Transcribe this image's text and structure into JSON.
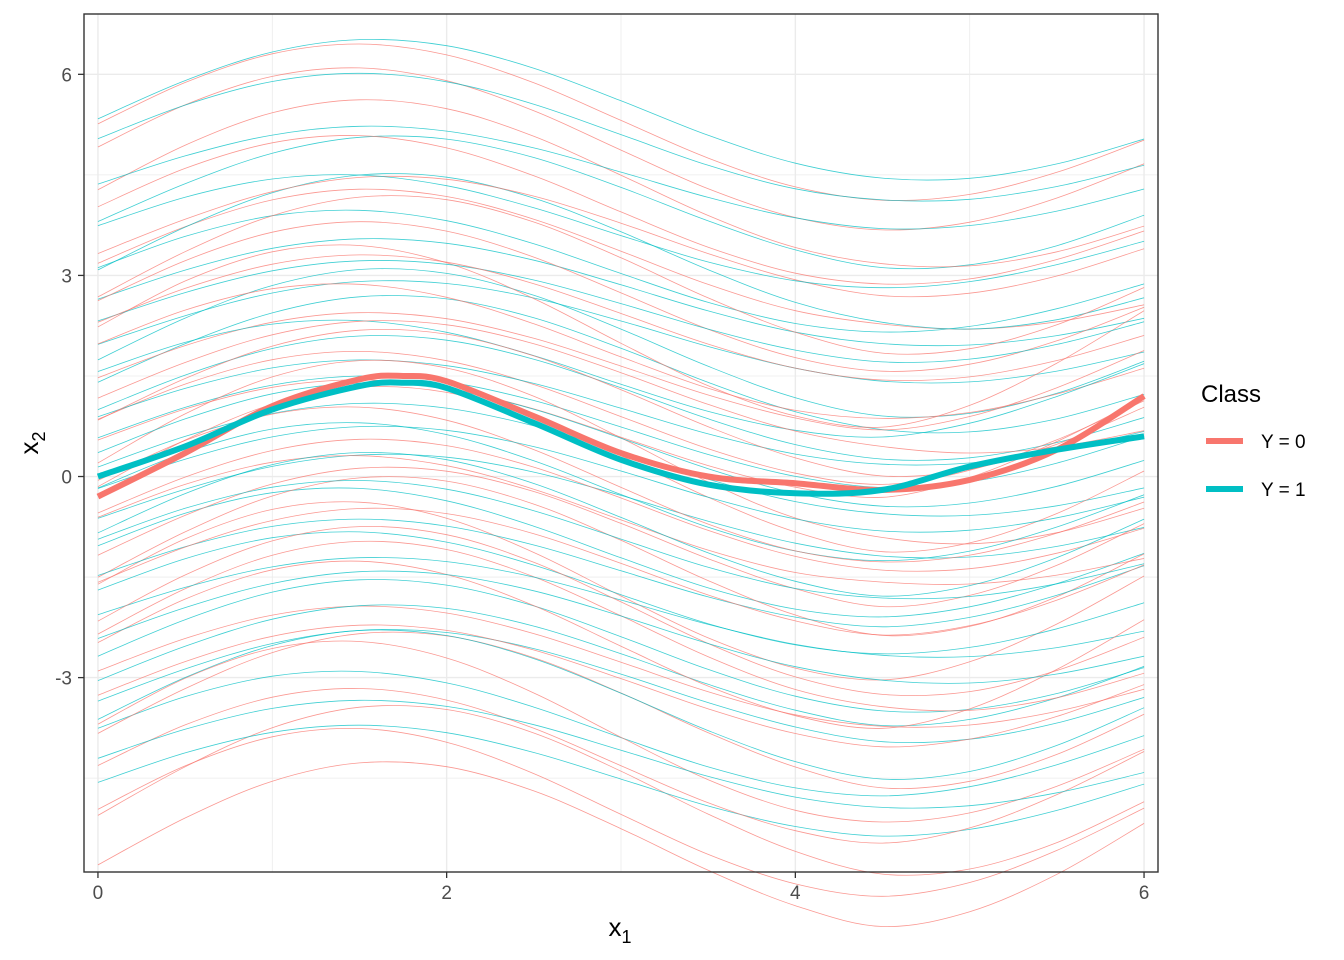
{
  "chart_data": {
    "type": "line",
    "xlabel": {
      "base": "x",
      "sub": "1"
    },
    "ylabel": {
      "base": "x",
      "sub": "2"
    },
    "xlim": [
      -0.08,
      6.08
    ],
    "ylim": [
      -5.9,
      6.9
    ],
    "x_ticks": [
      0,
      2,
      4,
      6
    ],
    "x_tick_labels": [
      "0",
      "2",
      "4",
      "6"
    ],
    "y_ticks": [
      -3,
      0,
      3,
      6
    ],
    "y_tick_labels": [
      "-3",
      "0",
      "3",
      "6"
    ],
    "grid": true,
    "legend": {
      "title": "Class",
      "position": "right",
      "entries": [
        {
          "label": "Y = 0",
          "color": "#F8766D"
        },
        {
          "label": "Y = 1",
          "color": "#00BFC4"
        }
      ]
    },
    "series": [
      {
        "name": "Y = 0",
        "role": "mean",
        "color": "#F8766D",
        "x": [
          0,
          0.5,
          1,
          1.5,
          1.75,
          2,
          2.5,
          3,
          3.5,
          4,
          4.5,
          5,
          5.5,
          6
        ],
        "values": [
          -0.3,
          0.35,
          1.05,
          1.45,
          1.5,
          1.42,
          0.9,
          0.35,
          0.0,
          -0.1,
          -0.2,
          -0.05,
          0.4,
          1.2
        ]
      },
      {
        "name": "Y = 1",
        "role": "mean",
        "color": "#00BFC4",
        "x": [
          0,
          0.5,
          1,
          1.5,
          1.75,
          2,
          2.5,
          3,
          3.5,
          4,
          4.5,
          5,
          5.5,
          6
        ],
        "values": [
          0.0,
          0.45,
          1.0,
          1.35,
          1.4,
          1.32,
          0.8,
          0.25,
          -0.12,
          -0.25,
          -0.2,
          0.15,
          0.4,
          0.6
        ]
      }
    ],
    "individual_curves": {
      "description_of_shape": "x2 = level + 1.0*sin(x1) - 0.08*x1 variant per curve",
      "x": [
        0,
        0.5,
        1,
        1.5,
        2,
        2.5,
        3,
        3.5,
        4,
        4.5,
        5,
        5.5,
        6
      ],
      "Y = 0": {
        "color": "#F8766D",
        "levels": [
          -5.6,
          -5.1,
          -4.8,
          -4.4,
          -3.9,
          -3.6,
          -3.2,
          -2.9,
          -2.6,
          -2.3,
          -2.1,
          -1.8,
          -1.5,
          -1.3,
          -1.0,
          -0.7,
          -0.5,
          -0.2,
          0.0,
          0.3,
          0.5,
          0.8,
          1.0,
          1.3,
          1.5,
          1.8,
          2.0,
          2.3,
          2.6,
          2.9,
          3.2,
          3.5,
          3.9,
          4.3,
          4.8,
          5.2
        ],
        "amplitude": 1.25,
        "tail": 0.45
      },
      "Y = 1": {
        "color": "#00BFC4",
        "levels": [
          -4.6,
          -4.2,
          -3.9,
          -3.5,
          -3.2,
          -2.9,
          -2.6,
          -2.3,
          -2.0,
          -1.8,
          -1.5,
          -1.2,
          -1.0,
          -0.8,
          -0.5,
          -0.3,
          -0.1,
          0.2,
          0.4,
          0.6,
          0.9,
          1.1,
          1.4,
          1.6,
          1.9,
          2.1,
          2.4,
          2.7,
          3.0,
          3.3,
          3.6,
          4.0,
          4.4,
          5.0,
          5.4
        ],
        "amplitude": 1.05,
        "tail": 0.25
      }
    }
  }
}
